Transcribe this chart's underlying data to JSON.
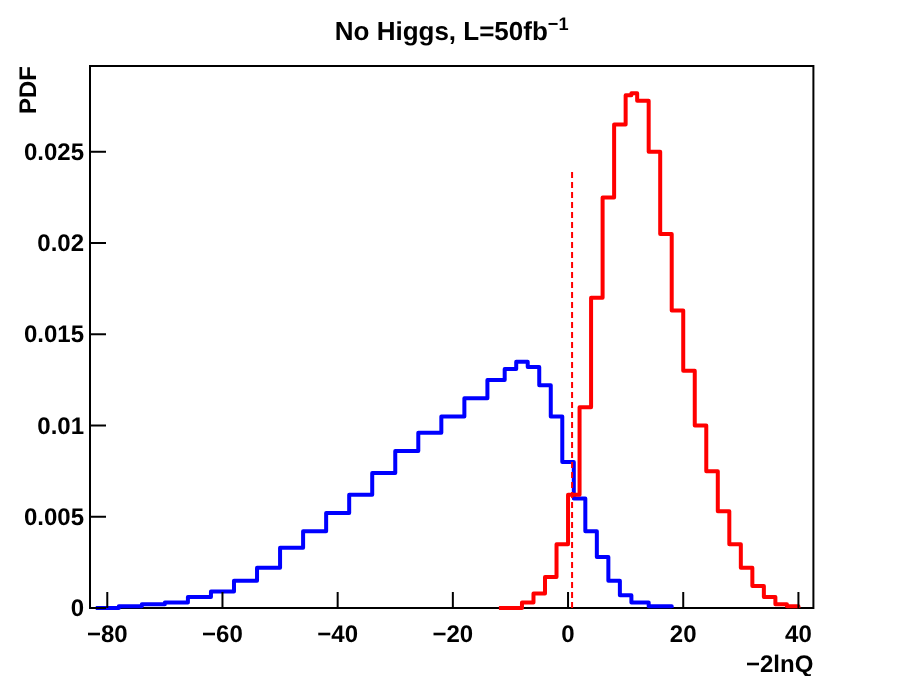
{
  "chart_data": {
    "type": "step",
    "title": "No Higgs, L=50fb$^{−1}$",
    "xlabel": "−2lnQ",
    "ylabel": "PDF",
    "xlim": [
      -83,
      42.6
    ],
    "ylim": [
      0,
      0.0297
    ],
    "xticks": [
      {
        "value": -80,
        "label": "−80"
      },
      {
        "value": -60,
        "label": "−60"
      },
      {
        "value": -40,
        "label": "−40"
      },
      {
        "value": -20,
        "label": "−20"
      },
      0,
      20,
      40
    ],
    "yticks": [
      0,
      0.005,
      0.01,
      0.015,
      0.02,
      0.025
    ],
    "grid": false,
    "series": [
      {
        "color": "#0000ff",
        "x": [
          -82,
          -78,
          -74,
          -70,
          -66,
          -62,
          -58,
          -54,
          -50,
          -46,
          -42,
          -38,
          -34,
          -30,
          -26,
          -22,
          -18,
          -14,
          -11,
          -9,
          -7,
          -5,
          -3,
          -1,
          1,
          3,
          5,
          7,
          9,
          11,
          14,
          18
        ],
        "values": [
          0.0,
          0.0001,
          0.0002,
          0.0003,
          0.0006,
          0.0009,
          0.0015,
          0.0022,
          0.0033,
          0.0042,
          0.0052,
          0.0062,
          0.0074,
          0.0086,
          0.0096,
          0.0105,
          0.0115,
          0.0125,
          0.0131,
          0.0135,
          0.0132,
          0.0122,
          0.0105,
          0.008,
          0.006,
          0.0042,
          0.0028,
          0.0015,
          0.0007,
          0.0003,
          0.0001,
          0.0
        ]
      },
      {
        "color": "#ff0000",
        "x": [
          -12,
          -8,
          -6,
          -4,
          -2,
          0,
          2,
          4,
          6,
          8,
          10,
          11,
          12,
          14,
          16,
          18,
          20,
          22,
          24,
          26,
          28,
          30,
          32,
          34,
          36,
          38,
          40
        ],
        "values": [
          0.0,
          0.0003,
          0.0008,
          0.0017,
          0.0035,
          0.0062,
          0.011,
          0.017,
          0.0225,
          0.0265,
          0.0281,
          0.0282,
          0.0278,
          0.025,
          0.0205,
          0.0163,
          0.013,
          0.01,
          0.0075,
          0.0053,
          0.0035,
          0.0022,
          0.0012,
          0.0006,
          0.0002,
          0.0001,
          0.0
        ]
      },
      {
        "type": "line",
        "line_style": "dashed",
        "color": "#ff0000",
        "x": [
          0.7,
          0.7
        ],
        "values": [
          0,
          0.0239
        ]
      }
    ]
  }
}
